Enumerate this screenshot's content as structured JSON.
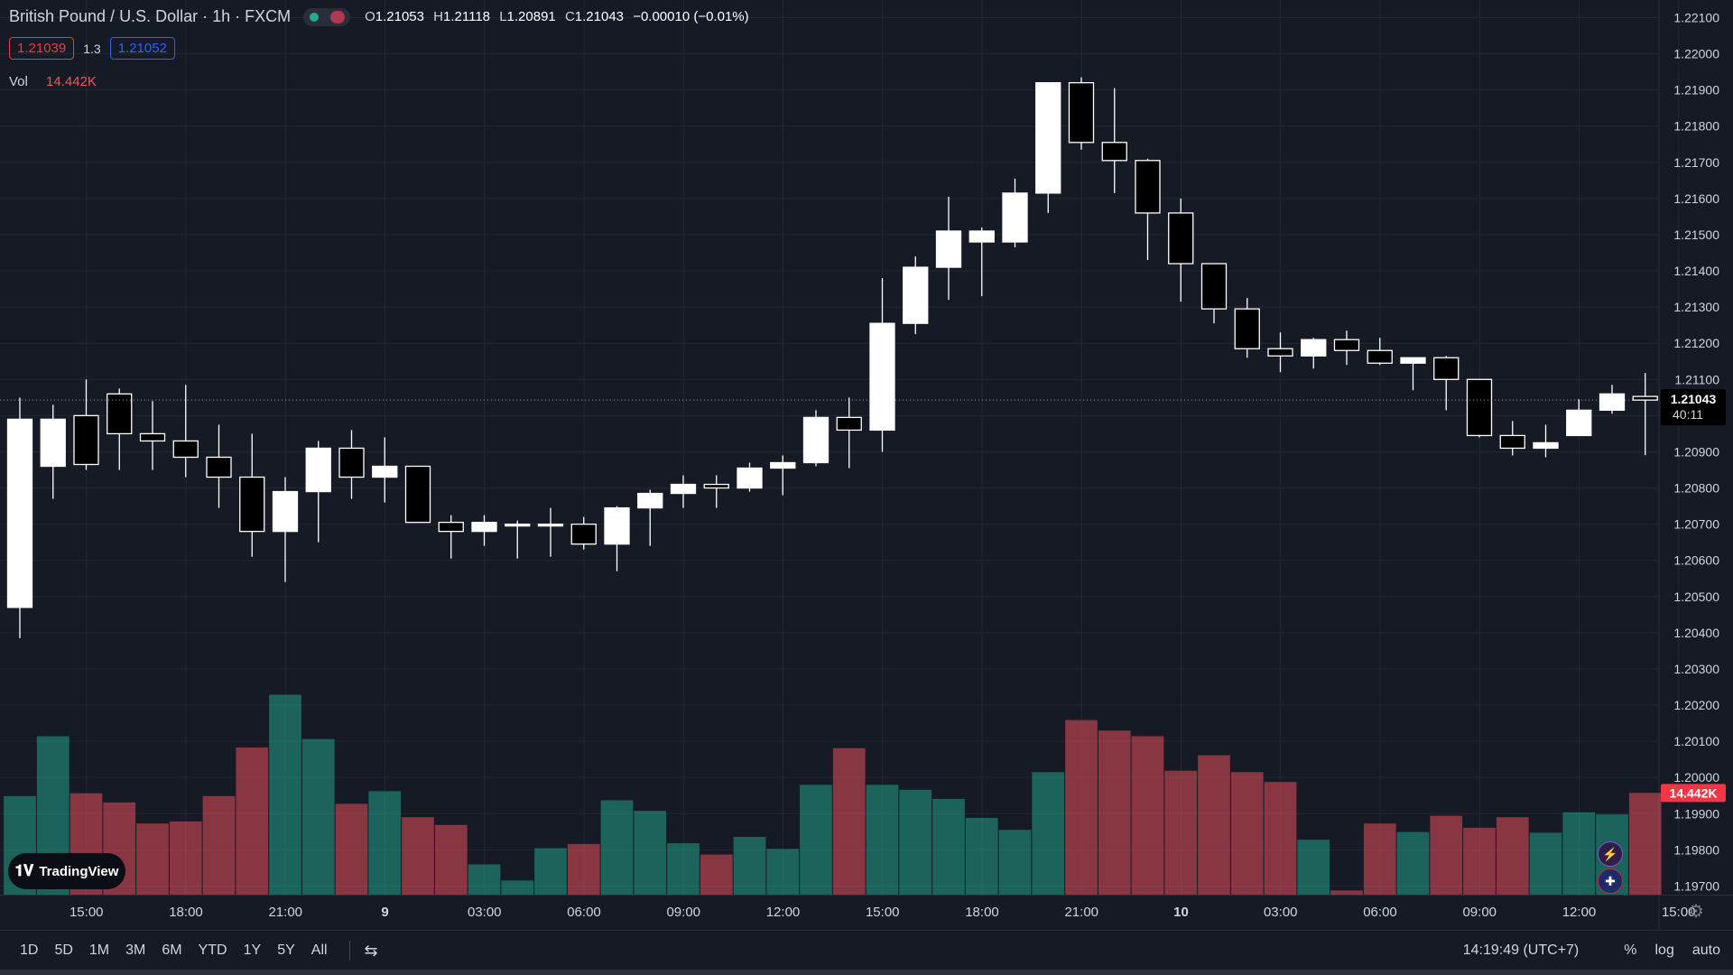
{
  "header": {
    "title": "British Pound / U.S. Dollar · 1h · FXCM",
    "ohlc": {
      "o_label": "O",
      "o": "1.21053",
      "h_label": "H",
      "h": "1.21118",
      "l_label": "L",
      "l": "1.20891",
      "c_label": "C",
      "c": "1.21043",
      "change": "−0.00010 (−0.01%)"
    },
    "bid": "1.21039",
    "spread": "1.3",
    "ask": "1.21052",
    "volume_label": "Vol",
    "volume_value": "14.442K"
  },
  "logo_text": "TradingView",
  "toolbar": {
    "ranges": [
      "1D",
      "5D",
      "1M",
      "3M",
      "6M",
      "YTD",
      "1Y",
      "5Y",
      "All"
    ],
    "time_readout": "14:19:49 (UTC+7)",
    "percent_label": "%",
    "log_label": "log",
    "auto_label": "auto"
  },
  "colors": {
    "background": "#161a25",
    "up_candle": "#ffffff",
    "down_candle": "#000000",
    "volume_up": "#22ab94",
    "volume_down": "#f7525f",
    "last_price_tag": "#000000",
    "volume_tag": "#f23645"
  },
  "chart_data": {
    "type": "candlestick",
    "title": "British Pound / U.S. Dollar · 1h · FXCM",
    "x_tick_labels": [
      {
        "label": "15:00",
        "index": 1
      },
      {
        "label": "18:00",
        "index": 4
      },
      {
        "label": "21:00",
        "index": 7
      },
      {
        "label": "9",
        "index": 10
      },
      {
        "label": "03:00",
        "index": 13
      },
      {
        "label": "06:00",
        "index": 16
      },
      {
        "label": "09:00",
        "index": 19
      },
      {
        "label": "12:00",
        "index": 22
      },
      {
        "label": "15:00",
        "index": 25
      },
      {
        "label": "18:00",
        "index": 28
      },
      {
        "label": "21:00",
        "index": 31
      },
      {
        "label": "10",
        "index": 34
      },
      {
        "label": "03:00",
        "index": 37
      },
      {
        "label": "06:00",
        "index": 40
      },
      {
        "label": "09:00",
        "index": 43
      },
      {
        "label": "12:00",
        "index": 46
      },
      {
        "label": "15:00",
        "index": 49
      }
    ],
    "y_tick_labels": [
      "1.22100",
      "1.22000",
      "1.21900",
      "1.21800",
      "1.21700",
      "1.21600",
      "1.21500",
      "1.21400",
      "1.21300",
      "1.21200",
      "1.21100",
      "1.21000",
      "1.20900",
      "1.20800",
      "1.20700",
      "1.20600",
      "1.20500",
      "1.20400",
      "1.20300",
      "1.20200",
      "1.20100",
      "1.20000",
      "1.19900",
      "1.19800",
      "1.19700"
    ],
    "ylim": [
      1.19665,
      1.22135
    ],
    "last_price": "1.21043",
    "countdown": "40:11",
    "volume_tag": "14.442K",
    "volume_ylim": [
      0,
      28
    ],
    "candles": [
      {
        "o": 1.2047,
        "h": 1.2105,
        "l": 1.20385,
        "c": 1.2099,
        "v": 14.0
      },
      {
        "o": 1.2086,
        "h": 1.2103,
        "l": 1.2077,
        "c": 1.2099,
        "v": 22.5
      },
      {
        "o": 1.21,
        "h": 1.211,
        "l": 1.2085,
        "c": 1.20865,
        "v": 14.4
      },
      {
        "o": 1.2106,
        "h": 1.21075,
        "l": 1.2085,
        "c": 1.2095,
        "v": 13.1
      },
      {
        "o": 1.2095,
        "h": 1.2104,
        "l": 1.2085,
        "c": 1.2093,
        "v": 10.1
      },
      {
        "o": 1.2093,
        "h": 1.21085,
        "l": 1.2083,
        "c": 1.20885,
        "v": 10.4
      },
      {
        "o": 1.20885,
        "h": 1.20975,
        "l": 1.20745,
        "c": 1.2083,
        "v": 14.0
      },
      {
        "o": 1.2083,
        "h": 1.2095,
        "l": 1.2061,
        "c": 1.2068,
        "v": 20.9
      },
      {
        "o": 1.2068,
        "h": 1.2083,
        "l": 1.2054,
        "c": 1.2079,
        "v": 28.4
      },
      {
        "o": 1.2079,
        "h": 1.2093,
        "l": 1.2065,
        "c": 1.2091,
        "v": 22.1
      },
      {
        "o": 1.2091,
        "h": 1.2096,
        "l": 1.2077,
        "c": 1.2083,
        "v": 12.9
      },
      {
        "o": 1.2083,
        "h": 1.2094,
        "l": 1.2076,
        "c": 1.2086,
        "v": 14.7
      },
      {
        "o": 1.2086,
        "h": 1.2086,
        "l": 1.20705,
        "c": 1.20705,
        "v": 11.0
      },
      {
        "o": 1.20705,
        "h": 1.20725,
        "l": 1.20605,
        "c": 1.2068,
        "v": 9.9
      },
      {
        "o": 1.2068,
        "h": 1.20725,
        "l": 1.2064,
        "c": 1.20705,
        "v": 4.3
      },
      {
        "o": 1.207,
        "h": 1.2071,
        "l": 1.20605,
        "c": 1.207,
        "v": 2.0
      },
      {
        "o": 1.207,
        "h": 1.20745,
        "l": 1.2061,
        "c": 1.207,
        "v": 6.6
      },
      {
        "o": 1.207,
        "h": 1.2072,
        "l": 1.2063,
        "c": 1.20645,
        "v": 7.2
      },
      {
        "o": 1.20645,
        "h": 1.2075,
        "l": 1.2057,
        "c": 1.20745,
        "v": 13.4
      },
      {
        "o": 1.20745,
        "h": 1.20795,
        "l": 1.2064,
        "c": 1.20785,
        "v": 11.9
      },
      {
        "o": 1.20785,
        "h": 1.20835,
        "l": 1.20745,
        "c": 1.2081,
        "v": 7.3
      },
      {
        "o": 1.2081,
        "h": 1.20835,
        "l": 1.20745,
        "c": 1.208,
        "v": 5.7
      },
      {
        "o": 1.208,
        "h": 1.2087,
        "l": 1.2079,
        "c": 1.20855,
        "v": 8.2
      },
      {
        "o": 1.20855,
        "h": 1.2089,
        "l": 1.2078,
        "c": 1.2087,
        "v": 6.5
      },
      {
        "o": 1.2087,
        "h": 1.21015,
        "l": 1.2086,
        "c": 1.20995,
        "v": 15.6
      },
      {
        "o": 1.20995,
        "h": 1.2105,
        "l": 1.20855,
        "c": 1.2096,
        "v": 20.8
      },
      {
        "o": 1.2096,
        "h": 1.2138,
        "l": 1.209,
        "c": 1.21255,
        "v": 15.6
      },
      {
        "o": 1.21255,
        "h": 1.2144,
        "l": 1.21225,
        "c": 1.2141,
        "v": 14.9
      },
      {
        "o": 1.2141,
        "h": 1.21605,
        "l": 1.2132,
        "c": 1.2151,
        "v": 13.6
      },
      {
        "o": 1.2148,
        "h": 1.2152,
        "l": 1.2133,
        "c": 1.2151,
        "v": 10.9
      },
      {
        "o": 1.2148,
        "h": 1.21655,
        "l": 1.21465,
        "c": 1.21615,
        "v": 9.2
      },
      {
        "o": 1.21615,
        "h": 1.2192,
        "l": 1.2156,
        "c": 1.2192,
        "v": 17.4
      },
      {
        "o": 1.2192,
        "h": 1.21935,
        "l": 1.21735,
        "c": 1.21755,
        "v": 24.8
      },
      {
        "o": 1.21755,
        "h": 1.21905,
        "l": 1.21615,
        "c": 1.21705,
        "v": 23.3
      },
      {
        "o": 1.21705,
        "h": 1.2171,
        "l": 1.2143,
        "c": 1.2156,
        "v": 22.5
      },
      {
        "o": 1.2156,
        "h": 1.216,
        "l": 1.21315,
        "c": 1.2142,
        "v": 17.6
      },
      {
        "o": 1.2142,
        "h": 1.2142,
        "l": 1.21255,
        "c": 1.21295,
        "v": 19.8
      },
      {
        "o": 1.21295,
        "h": 1.21325,
        "l": 1.2116,
        "c": 1.21185,
        "v": 17.4
      },
      {
        "o": 1.21185,
        "h": 1.2123,
        "l": 1.2112,
        "c": 1.21165,
        "v": 16.0
      },
      {
        "o": 1.21165,
        "h": 1.21215,
        "l": 1.2113,
        "c": 1.2121,
        "v": 7.8
      },
      {
        "o": 1.2121,
        "h": 1.21235,
        "l": 1.2114,
        "c": 1.2118,
        "v": 0.6
      },
      {
        "o": 1.2118,
        "h": 1.21215,
        "l": 1.2114,
        "c": 1.21145,
        "v": 10.1
      },
      {
        "o": 1.21145,
        "h": 1.2116,
        "l": 1.2107,
        "c": 1.2116,
        "v": 8.9
      },
      {
        "o": 1.2116,
        "h": 1.21165,
        "l": 1.21015,
        "c": 1.211,
        "v": 11.2
      },
      {
        "o": 1.211,
        "h": 1.211,
        "l": 1.2094,
        "c": 1.20945,
        "v": 9.5
      },
      {
        "o": 1.20945,
        "h": 1.20985,
        "l": 1.2089,
        "c": 1.2091,
        "v": 11.0
      },
      {
        "o": 1.2091,
        "h": 1.20975,
        "l": 1.20885,
        "c": 1.20925,
        "v": 8.8
      },
      {
        "o": 1.20945,
        "h": 1.21045,
        "l": 1.20945,
        "c": 1.21015,
        "v": 11.7
      },
      {
        "o": 1.21015,
        "h": 1.21085,
        "l": 1.21005,
        "c": 1.2106,
        "v": 11.4
      },
      {
        "o": 1.21053,
        "h": 1.21118,
        "l": 1.20891,
        "c": 1.21043,
        "v": 14.442
      }
    ]
  }
}
